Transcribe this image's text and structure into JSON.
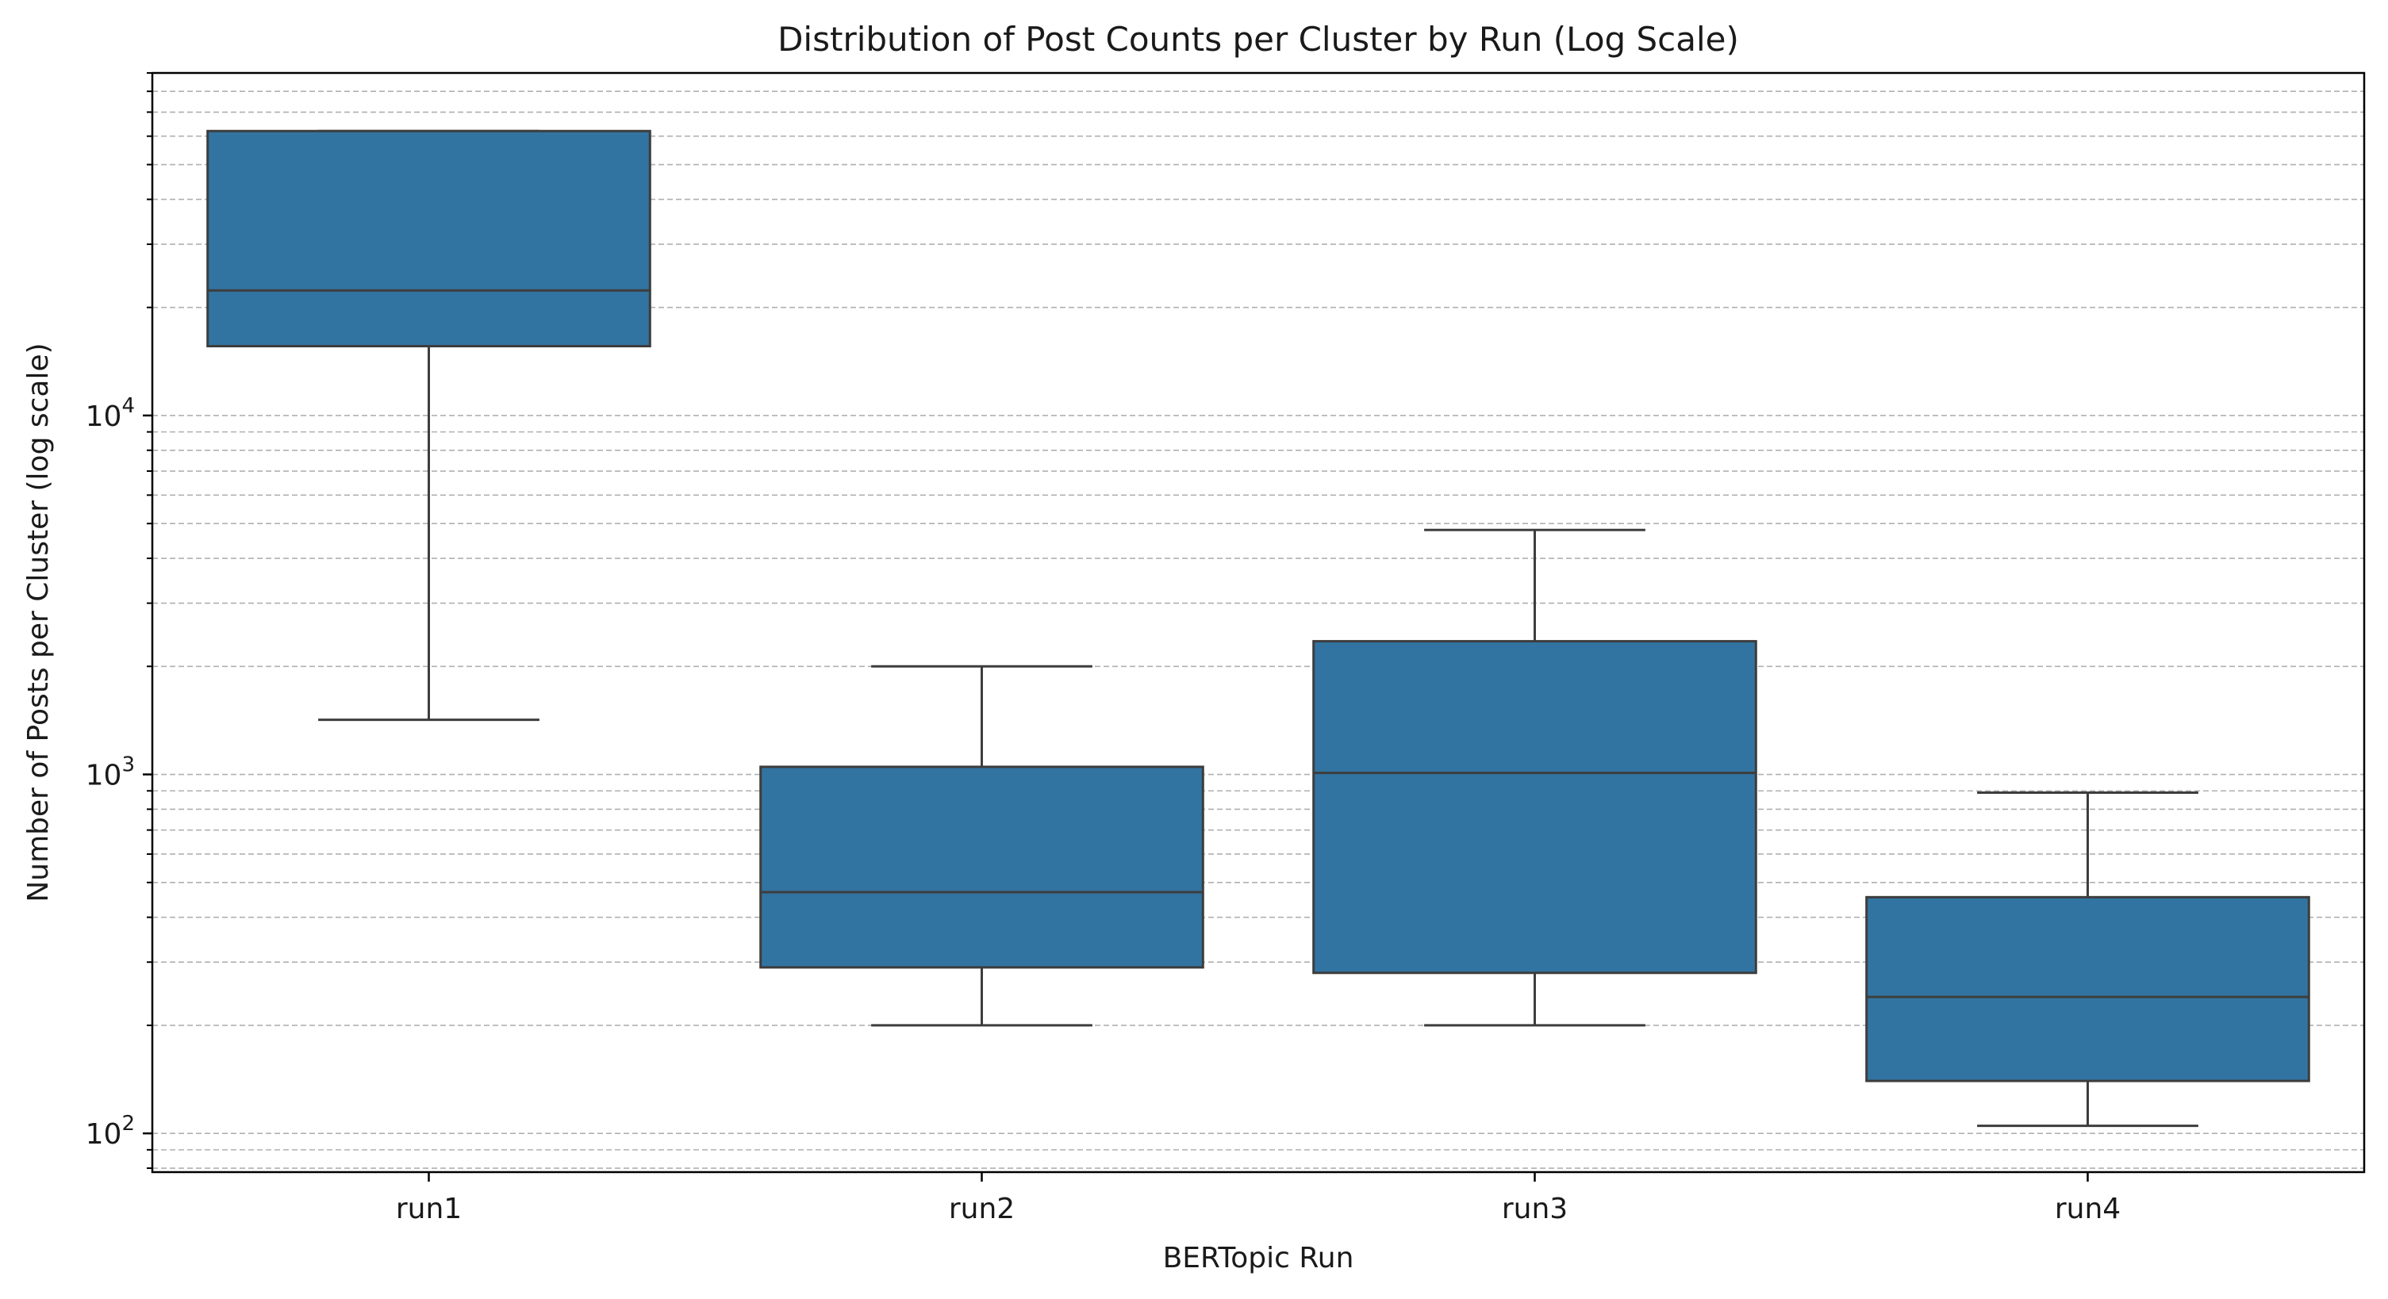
{
  "chart_data": {
    "type": "box",
    "title": "Distribution of Post Counts per Cluster by Run (Log Scale)",
    "xlabel": "BERTopic Run",
    "ylabel": "Number of Posts per Cluster (log scale)",
    "yscale": "log",
    "ylim": [
      78,
      90000
    ],
    "yticks": [
      {
        "value": 100,
        "base": "10",
        "exp": "2"
      },
      {
        "value": 1000,
        "base": "10",
        "exp": "3"
      },
      {
        "value": 10000,
        "base": "10",
        "exp": "4"
      }
    ],
    "grid": "y-major-and-minor-dashed",
    "box_color": "#3274a1",
    "edge_color": "#3d3d3d",
    "categories": [
      "run1",
      "run2",
      "run3",
      "run4"
    ],
    "boxes": [
      {
        "name": "run1",
        "whisker_low": 1420,
        "q1": 15600,
        "median": 22300,
        "q3": 62000,
        "whisker_high": 62000
      },
      {
        "name": "run2",
        "whisker_low": 200,
        "q1": 290,
        "median": 470,
        "q3": 1050,
        "whisker_high": 2000
      },
      {
        "name": "run3",
        "whisker_low": 200,
        "q1": 280,
        "median": 1010,
        "q3": 2350,
        "whisker_high": 4800
      },
      {
        "name": "run4",
        "whisker_low": 105,
        "q1": 140,
        "median": 240,
        "q3": 455,
        "whisker_high": 890
      }
    ]
  }
}
